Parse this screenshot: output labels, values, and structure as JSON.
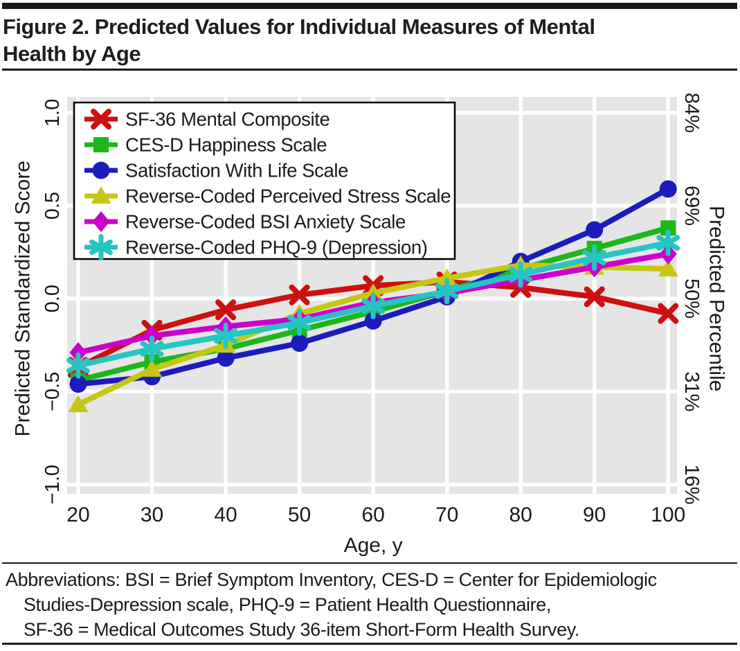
{
  "header": {
    "title_line1": "Figure 2. Predicted Values for Individual Measures of Mental",
    "title_line2": "Health by Age"
  },
  "footer": {
    "line1": "Abbreviations: BSI = Brief Symptom Inventory, CES-D = Center for Epidemiologic",
    "line2": "Studies-Depression scale, PHQ-9 = Patient Health Questionnaire,",
    "line3": "SF-36 = Medical Outcomes Study 36-item Short-Form Health Survey."
  },
  "chart_data": {
    "type": "line",
    "x": [
      20,
      30,
      40,
      50,
      60,
      70,
      80,
      90,
      100
    ],
    "xtick_labels": [
      "20",
      "30",
      "40",
      "50",
      "60",
      "70",
      "80",
      "90",
      "100"
    ],
    "xlabel": "Age, y",
    "ylabel_left": "Predicted Standardized Score",
    "ylabel_right": "Predicted Percentile",
    "yticks": [
      1.0,
      0.5,
      0.0,
      -0.5,
      -1.0
    ],
    "ytick_labels_left": [
      "1.0",
      "0.5",
      "0.0",
      "−0.5",
      "−1.0"
    ],
    "ytick_labels_right": [
      "84%",
      "69%",
      "50%",
      "31%",
      "16%"
    ],
    "xlim": [
      18.5,
      101.2
    ],
    "ylim": [
      -1.05,
      1.085
    ],
    "grid": true,
    "panel_color": "#e5e5e5",
    "grid_color": "#ffffff",
    "legend_position": "top-left",
    "series": [
      {
        "name": "SF-36 Mental Composite",
        "color": "#cc1111",
        "marker": "x",
        "values": [
          -0.37,
          -0.17,
          -0.06,
          0.02,
          0.07,
          0.09,
          0.06,
          0.01,
          -0.08
        ]
      },
      {
        "name": "CES-D Happiness Scale",
        "color": "#1cb71c",
        "marker": "square",
        "values": [
          -0.44,
          -0.34,
          -0.27,
          -0.17,
          -0.07,
          0.04,
          0.16,
          0.27,
          0.38
        ]
      },
      {
        "name": "Satisfaction With Life Scale",
        "color": "#1c1cbc",
        "marker": "circle",
        "values": [
          -0.46,
          -0.42,
          -0.32,
          -0.24,
          -0.12,
          0.01,
          0.2,
          0.37,
          0.59
        ]
      },
      {
        "name": "Reverse-Coded Perceived Stress Scale",
        "color": "#c6c614",
        "marker": "triangle",
        "values": [
          -0.57,
          -0.38,
          -0.25,
          -0.08,
          0.03,
          0.11,
          0.18,
          0.17,
          0.16
        ]
      },
      {
        "name": "Reverse-Coded BSI Anxiety Scale",
        "color": "#cc00cc",
        "marker": "diamond",
        "values": [
          -0.29,
          -0.2,
          -0.15,
          -0.11,
          -0.02,
          0.03,
          0.1,
          0.17,
          0.24
        ]
      },
      {
        "name": "Reverse-Coded PHQ-9 (Depression)",
        "color": "#27c4c4",
        "marker": "asterisk",
        "values": [
          -0.36,
          -0.27,
          -0.2,
          -0.13,
          -0.04,
          0.04,
          0.13,
          0.22,
          0.3
        ]
      }
    ]
  }
}
